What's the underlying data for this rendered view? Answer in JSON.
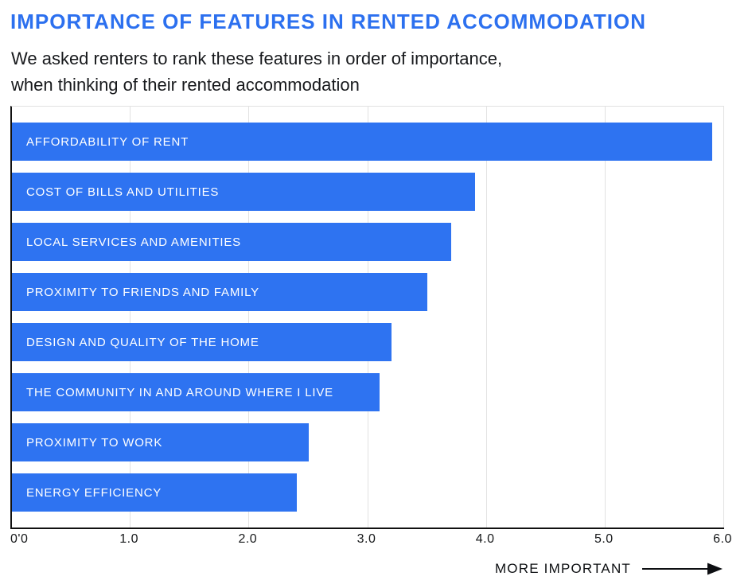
{
  "header": {
    "title": "IMPORTANCE OF FEATURES IN RENTED ACCOMMODATION",
    "subtitle_line1": "We asked renters to rank these features in order of importance,",
    "subtitle_line2": "when thinking of their rented accommodation"
  },
  "chart_data": {
    "type": "bar",
    "orientation": "horizontal",
    "title": "IMPORTANCE OF FEATURES IN RENTED ACCOMMODATION",
    "categories": [
      "AFFORDABILITY OF RENT",
      "COST OF BILLS AND UTILITIES",
      "LOCAL SERVICES AND AMENITIES",
      "PROXIMITY TO FRIENDS AND FAMILY",
      "DESIGN AND QUALITY OF THE HOME",
      "THE COMMUNITY IN AND AROUND WHERE I LIVE",
      "PROXIMITY TO WORK",
      "ENERGY EFFICIENCY"
    ],
    "values": [
      5.9,
      3.9,
      3.7,
      3.5,
      3.2,
      3.1,
      2.5,
      2.4
    ],
    "xlim": [
      0,
      6
    ],
    "x_tick_labels": [
      "0'0",
      "1.0",
      "2.0",
      "3.0",
      "4.0",
      "5.0",
      "6.0"
    ],
    "x_tick_values": [
      0,
      1,
      2,
      3,
      4,
      5,
      6
    ],
    "grid": "vertical-only",
    "legend": "none",
    "bar_labels_inside": true,
    "axis_note": "MORE IMPORTANT"
  },
  "footer": {
    "label": "MORE IMPORTANT",
    "arrow_icon": "right-arrow"
  },
  "colors": {
    "title": "#2c70ef",
    "bar": "#2e73f1",
    "grid": "#e2e2e2",
    "axis": "#111111",
    "text": "#17191c"
  }
}
